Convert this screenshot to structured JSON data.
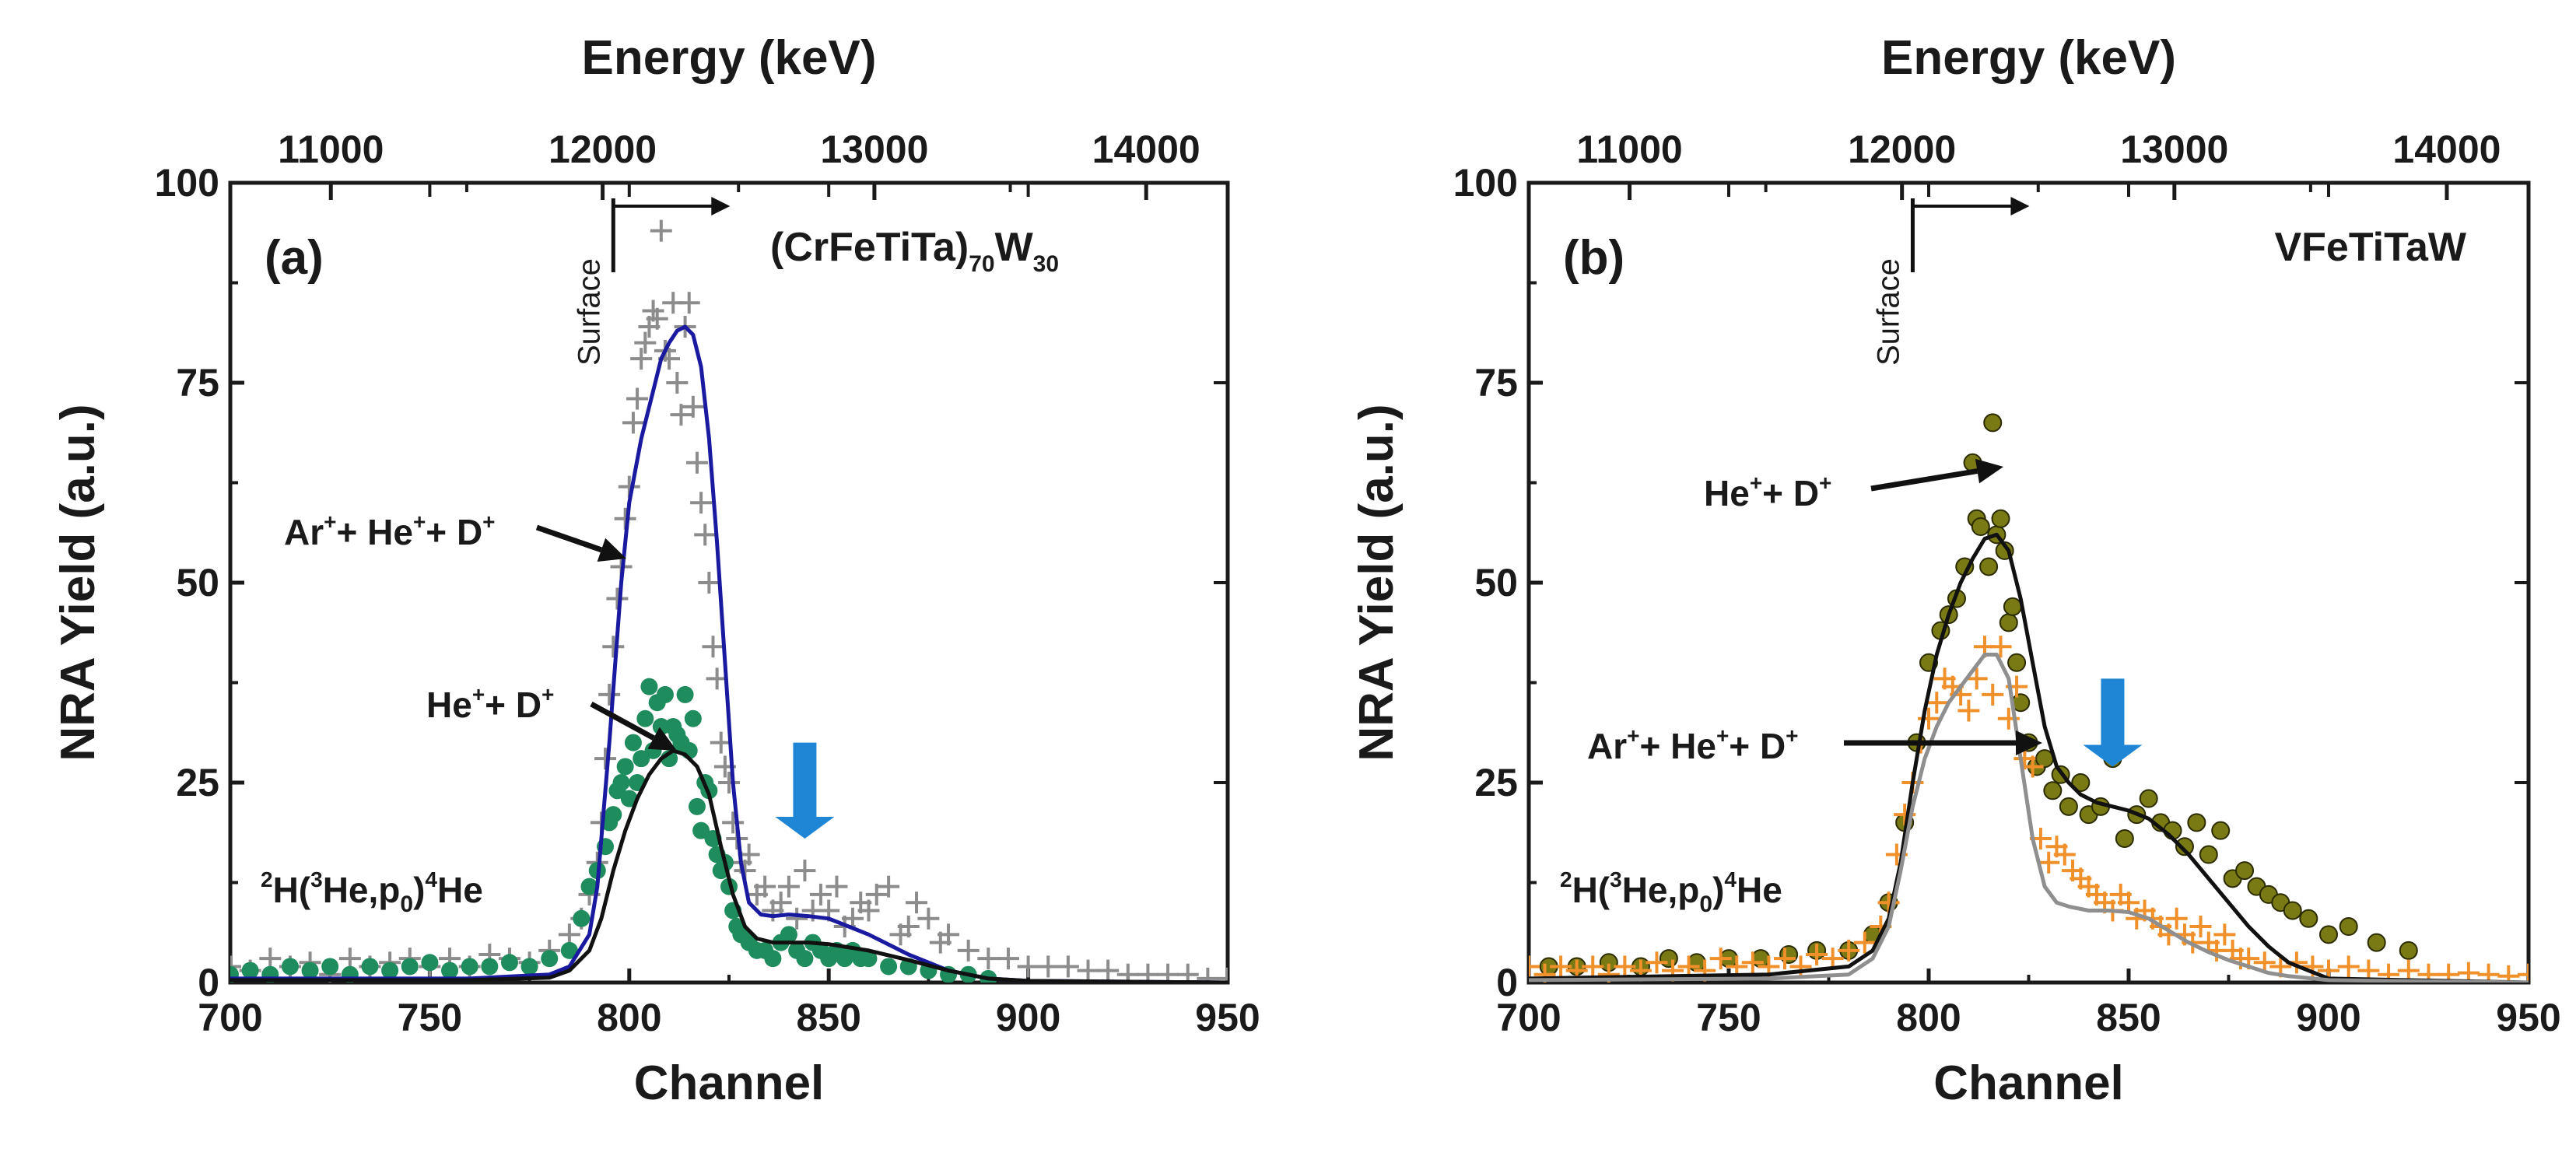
{
  "chart_data": [
    {
      "type": "scatter",
      "panel_label": "(a)",
      "sample": {
        "text": "(CrFeTiTa)",
        "sub1": "70",
        "mid": "W",
        "sub2": "30"
      },
      "xlabel": "Channel",
      "ylabel": "NRA Yield (a.u.)",
      "x2label": "Energy (keV)",
      "xlim": [
        700,
        950
      ],
      "ylim": [
        0,
        100
      ],
      "x2lim": [
        10630,
        14300
      ],
      "xticks": [
        "700",
        "750",
        "800",
        "850",
        "900",
        "950"
      ],
      "yticks": [
        "0",
        "25",
        "50",
        "75",
        "100"
      ],
      "x2ticks": [
        "11000",
        "12000",
        "13000",
        "14000"
      ],
      "surface": {
        "label": "Surface",
        "channel": 796
      },
      "reaction": {
        "pre": "H(",
        "mid": "He,p",
        "post": ")",
        "end": "He",
        "sup1": "2",
        "sup2": "3",
        "sub": "0",
        "sup3": "4"
      },
      "annotations": [
        {
          "text": "Ar",
          "sup": "+",
          "text2": "+ He",
          "sup2": "+",
          "text3": "+ D",
          "sup3": "+"
        },
        {
          "text": "He",
          "sup": "+",
          "text2": "+ D",
          "sup2": "+"
        }
      ],
      "arrow_channel": 844,
      "series": [
        {
          "marker": "plus",
          "color": "#8c8c8c",
          "x": [
            700,
            705,
            710,
            715,
            720,
            725,
            730,
            735,
            740,
            745,
            750,
            755,
            760,
            765,
            770,
            775,
            780,
            785,
            788,
            790,
            792,
            793,
            794,
            795,
            796,
            797,
            798,
            799,
            800,
            801,
            802,
            803,
            804,
            805,
            806,
            807,
            808,
            809,
            810,
            811,
            812,
            813,
            814,
            815,
            816,
            817,
            818,
            819,
            820,
            821,
            822,
            823,
            824,
            825,
            826,
            827,
            828,
            829,
            830,
            832,
            834,
            836,
            838,
            840,
            842,
            844,
            846,
            848,
            850,
            852,
            854,
            856,
            858,
            860,
            862,
            865,
            868,
            870,
            872,
            875,
            878,
            880,
            885,
            890,
            895,
            900,
            905,
            910,
            915,
            920,
            925,
            930,
            935,
            940,
            945,
            950
          ],
          "y": [
            2,
            1.5,
            3,
            2,
            2.5,
            1,
            3,
            2,
            2.5,
            3,
            2,
            3,
            2,
            3.5,
            3,
            2.5,
            4,
            6,
            8,
            11,
            15,
            20,
            28,
            36,
            42,
            48,
            52,
            58,
            62,
            70,
            73,
            78,
            80,
            82,
            84,
            83,
            94,
            79,
            78,
            85,
            75,
            71,
            82,
            85,
            72,
            65,
            60,
            56,
            50,
            42,
            38,
            30,
            27,
            25,
            20,
            18,
            15,
            14,
            16,
            11,
            12,
            9,
            10,
            12,
            8,
            14,
            9,
            11,
            9,
            12,
            7,
            8,
            10,
            9,
            11,
            12,
            6,
            7,
            10,
            8,
            5,
            6,
            4,
            3,
            3,
            2,
            2,
            2,
            1.5,
            1.5,
            1,
            1,
            1,
            1,
            0.5,
            0.5
          ]
        },
        {
          "marker": "circle",
          "color": "#1f8c5e",
          "x": [
            700,
            705,
            710,
            715,
            720,
            725,
            730,
            735,
            740,
            745,
            750,
            755,
            760,
            765,
            770,
            775,
            780,
            785,
            788,
            790,
            792,
            794,
            795,
            796,
            797,
            798,
            799,
            800,
            801,
            802,
            803,
            804,
            805,
            806,
            807,
            808,
            809,
            810,
            811,
            812,
            813,
            814,
            815,
            816,
            817,
            818,
            819,
            820,
            821,
            822,
            823,
            824,
            825,
            826,
            827,
            828,
            830,
            832,
            834,
            836,
            838,
            840,
            842,
            844,
            846,
            848,
            850,
            852,
            854,
            856,
            858,
            860,
            865,
            870,
            875,
            880,
            885,
            890
          ],
          "y": [
            1,
            1.5,
            1,
            2,
            1.5,
            2,
            1,
            2,
            1.5,
            2,
            2.5,
            1.5,
            2,
            2,
            2.5,
            2,
            3,
            4,
            8,
            12,
            14,
            17,
            20,
            21,
            24,
            25,
            27,
            23,
            30,
            25,
            28,
            33,
            37,
            29,
            35,
            32,
            36,
            28,
            32,
            31,
            30,
            36,
            29,
            33,
            22,
            19,
            25,
            24,
            18,
            16,
            14,
            15,
            12,
            9,
            7,
            6,
            5,
            4,
            4,
            3,
            5,
            6,
            4,
            3,
            5,
            4,
            3,
            4,
            3,
            4,
            3,
            3,
            2,
            2,
            1.5,
            1,
            1,
            0.5
          ]
        }
      ],
      "lines": [
        {
          "color": "#1a1aa0",
          "x": [
            700,
            760,
            780,
            785,
            790,
            792,
            795,
            798,
            800,
            803,
            806,
            808,
            810,
            812,
            814,
            816,
            818,
            820,
            822,
            824,
            826,
            828,
            830,
            833,
            836,
            840,
            845,
            850,
            855,
            860,
            870,
            880,
            890,
            900,
            950
          ],
          "y": [
            0.5,
            0.5,
            1,
            2,
            6,
            12,
            30,
            50,
            60,
            68,
            74,
            78,
            80,
            81.5,
            82,
            81,
            77,
            68,
            55,
            40,
            25,
            15,
            10,
            8.5,
            8.3,
            8.5,
            8.3,
            8,
            7,
            6,
            3.5,
            1.5,
            0.5,
            0.2,
            0
          ]
        },
        {
          "color": "#111111",
          "x": [
            700,
            760,
            780,
            785,
            790,
            793,
            796,
            799,
            802,
            805,
            808,
            811,
            814,
            817,
            820,
            823,
            826,
            829,
            832,
            836,
            840,
            845,
            850,
            860,
            870,
            880,
            890,
            900,
            950
          ],
          "y": [
            0.3,
            0.3,
            0.6,
            1.5,
            4,
            8,
            14,
            19,
            23,
            26,
            28,
            29,
            28.5,
            27,
            23.5,
            17,
            11,
            7,
            5.5,
            5,
            5,
            5,
            4.8,
            4,
            2.8,
            1.5,
            0.5,
            0.2,
            0
          ]
        }
      ]
    },
    {
      "type": "scatter",
      "panel_label": "(b)",
      "sample": {
        "text": "VFeTiTaW"
      },
      "xlabel": "Channel",
      "ylabel": "NRA Yield (a.u.)",
      "x2label": "Energy (keV)",
      "xlim": [
        700,
        950
      ],
      "ylim": [
        0,
        100
      ],
      "x2lim": [
        10630,
        14300
      ],
      "xticks": [
        "700",
        "750",
        "800",
        "850",
        "900",
        "950"
      ],
      "yticks": [
        "0",
        "25",
        "50",
        "75",
        "100"
      ],
      "x2ticks": [
        "11000",
        "12000",
        "13000",
        "14000"
      ],
      "surface": {
        "label": "Surface",
        "channel": 796
      },
      "reaction": {
        "pre": "H(",
        "mid": "He,p",
        "post": ")",
        "end": "He",
        "sup1": "2",
        "sup2": "3",
        "sub": "0",
        "sup3": "4"
      },
      "annotations": [
        {
          "text": "He",
          "sup": "+",
          "text2": "+ D",
          "sup2": "+"
        },
        {
          "text": "Ar",
          "sup": "+",
          "text2": "+ He",
          "sup2": "+",
          "text3": "+ D",
          "sup3": "+"
        }
      ],
      "arrow_channel": 846,
      "series": [
        {
          "marker": "circle",
          "color": "#7a7a14",
          "x": [
            705,
            712,
            720,
            728,
            735,
            742,
            750,
            758,
            765,
            772,
            780,
            786,
            790,
            794,
            797,
            800,
            803,
            805,
            807,
            809,
            811,
            812,
            813,
            815,
            816,
            817,
            818,
            819,
            820,
            821,
            822,
            823,
            825,
            827,
            829,
            831,
            833,
            835,
            838,
            840,
            843,
            846,
            849,
            852,
            855,
            858,
            861,
            864,
            867,
            870,
            873,
            876,
            879,
            882,
            885,
            888,
            891,
            895,
            900,
            905,
            912,
            920
          ],
          "y": [
            2,
            2,
            2.5,
            2,
            3,
            2.5,
            3,
            3,
            3.5,
            4,
            4,
            6,
            10,
            20,
            30,
            40,
            44,
            46,
            48,
            52,
            65,
            58,
            57,
            52,
            70,
            56,
            58,
            54,
            45,
            47,
            40,
            35,
            30,
            27,
            28,
            24,
            26,
            22,
            25,
            21,
            22,
            28,
            18,
            21,
            23,
            20,
            19,
            17,
            20,
            16,
            19,
            13,
            14,
            12,
            11,
            10,
            9,
            8,
            6,
            7,
            5,
            4
          ]
        },
        {
          "marker": "plus",
          "color": "#f0902a",
          "x": [
            700,
            704,
            708,
            712,
            716,
            720,
            724,
            728,
            732,
            736,
            740,
            744,
            748,
            752,
            756,
            760,
            764,
            768,
            772,
            776,
            780,
            784,
            788,
            790,
            792,
            794,
            796,
            798,
            800,
            802,
            804,
            806,
            808,
            810,
            812,
            814,
            816,
            818,
            820,
            822,
            824,
            826,
            828,
            830,
            832,
            834,
            836,
            838,
            840,
            842,
            844,
            846,
            848,
            850,
            852,
            854,
            856,
            858,
            860,
            862,
            864,
            866,
            868,
            870,
            872,
            874,
            876,
            878,
            880,
            884,
            888,
            892,
            896,
            900,
            905,
            910,
            915,
            920,
            925,
            930,
            935,
            940,
            945,
            950
          ],
          "y": [
            2,
            1,
            2,
            1.5,
            2,
            1,
            2,
            1.5,
            2.5,
            1.5,
            2,
            1.5,
            3,
            2,
            2.5,
            2,
            3,
            2,
            3.5,
            3,
            4,
            5,
            7,
            10,
            16,
            21,
            25,
            30,
            33,
            35,
            38,
            37,
            36,
            34,
            38,
            42,
            36,
            42,
            33,
            37,
            28,
            27,
            18,
            15,
            17,
            16,
            14,
            13,
            12,
            11,
            10,
            9,
            11,
            10,
            8,
            9,
            8,
            7,
            6,
            8,
            6,
            5,
            7,
            5,
            4,
            6,
            4,
            3,
            3,
            2.5,
            2,
            2.5,
            2,
            1.5,
            2,
            1.5,
            1,
            1.5,
            1,
            1,
            1.2,
            1,
            0.8,
            1
          ]
        }
      ],
      "lines": [
        {
          "color": "#111111",
          "x": [
            700,
            760,
            780,
            786,
            790,
            793,
            796,
            799,
            802,
            805,
            808,
            811,
            814,
            817,
            820,
            823,
            826,
            829,
            832,
            835,
            838,
            842,
            846,
            850,
            855,
            860,
            865,
            870,
            875,
            880,
            885,
            890,
            900,
            950
          ],
          "y": [
            0.5,
            1,
            2,
            4,
            8,
            15,
            25,
            34,
            41,
            46,
            50,
            53,
            55.5,
            56,
            54,
            48,
            40,
            32,
            27,
            25,
            23.5,
            22.5,
            22,
            21.5,
            20.5,
            18.5,
            16,
            13,
            10,
            7,
            4.5,
            2.5,
            0.5,
            0
          ]
        },
        {
          "color": "#8f8f8f",
          "x": [
            700,
            760,
            780,
            786,
            790,
            793,
            796,
            799,
            802,
            805,
            808,
            811,
            814,
            817,
            820,
            823,
            826,
            829,
            832,
            835,
            840,
            845,
            850,
            855,
            860,
            865,
            870,
            875,
            880,
            885,
            890,
            900,
            950
          ],
          "y": [
            0.3,
            0.5,
            1,
            3,
            7,
            14,
            22,
            28,
            32,
            35,
            37,
            39,
            41,
            41,
            38,
            28,
            18,
            12,
            10,
            9.5,
            9,
            9,
            8.8,
            8,
            6.5,
            5,
            3.8,
            2.8,
            2,
            1.2,
            0.8,
            0.3,
            0
          ]
        }
      ]
    }
  ]
}
